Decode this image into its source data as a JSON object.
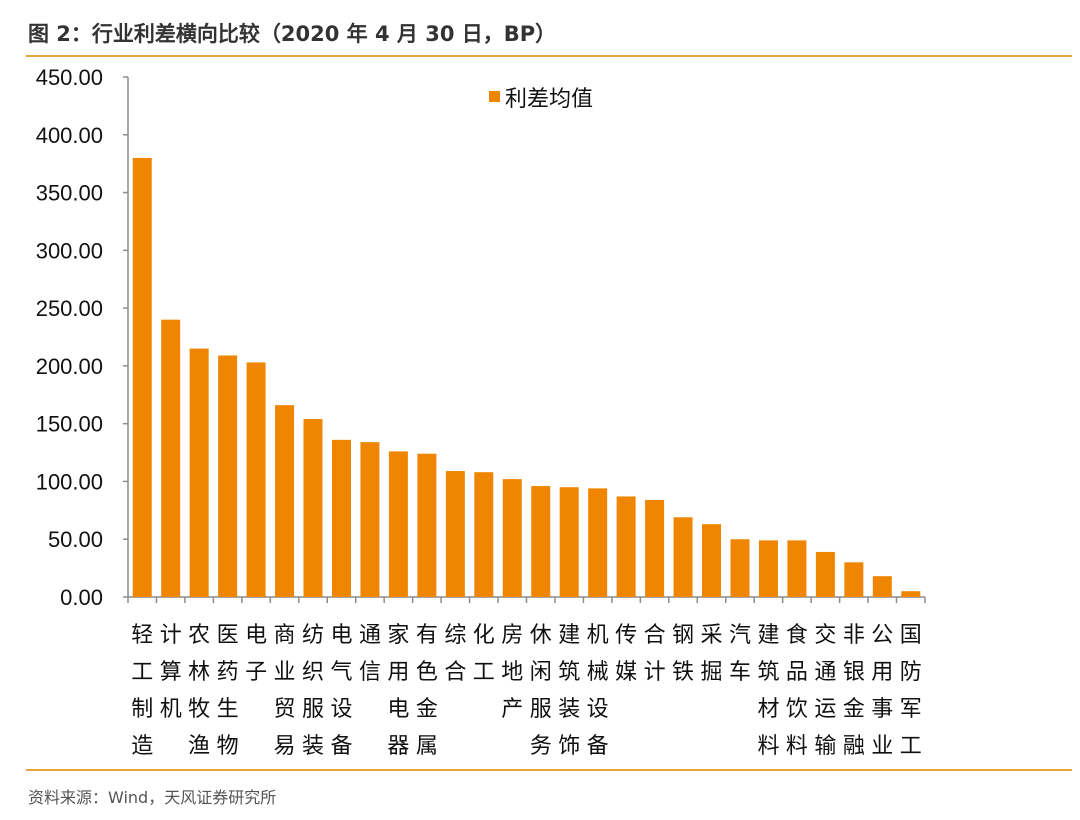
{
  "title": "图 2：行业利差横向比较（2020 年 4 月 30 日，BP）",
  "source": "资料来源：Wind，天风证券研究所",
  "colors": {
    "bar": "#ef8500",
    "rule": "#e8a33c",
    "axis": "#8c8c8c"
  },
  "chart_data": {
    "type": "bar",
    "title": "",
    "xlabel": "",
    "ylabel": "",
    "ylim": [
      0,
      450
    ],
    "yticks": [
      "0.00",
      "50.00",
      "100.00",
      "150.00",
      "200.00",
      "250.00",
      "300.00",
      "350.00",
      "400.00",
      "450.00"
    ],
    "grid": false,
    "legend": "top-center",
    "categories": [
      "轻工制造",
      "计算机",
      "农林牧渔",
      "医药生物",
      "电子",
      "商业贸易",
      "纺织服装",
      "电气设备",
      "通信",
      "家用电器",
      "有色金属",
      "综合",
      "化工",
      "房地产",
      "休闲服务",
      "建筑装饰",
      "机械设备",
      "传媒",
      "合计",
      "钢铁",
      "采掘",
      "汽车",
      "建筑材料",
      "食品饮料",
      "交通运输",
      "非银金融",
      "公用事业",
      "国防军工"
    ],
    "series": [
      {
        "name": "利差均值",
        "values": [
          380,
          240,
          215,
          209,
          203,
          166,
          154,
          136,
          134,
          126,
          124,
          109,
          108,
          102,
          96,
          95,
          94,
          87,
          84,
          69,
          63,
          50,
          49,
          49,
          39,
          30,
          18,
          5
        ]
      }
    ]
  }
}
